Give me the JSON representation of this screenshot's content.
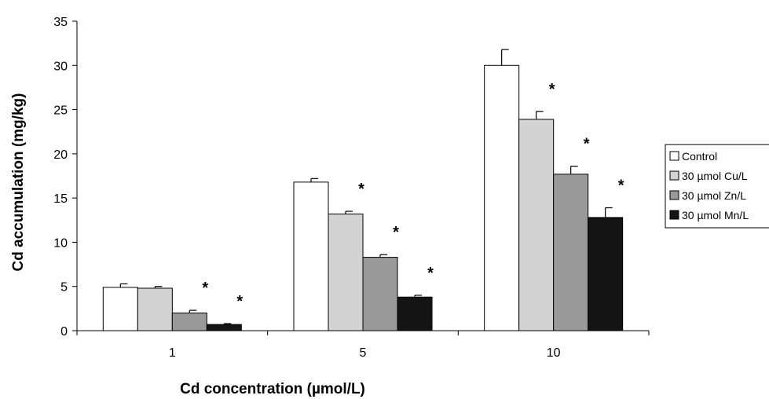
{
  "chart_data": {
    "type": "bar",
    "title": "",
    "xlabel": "Cd concentration (µmol/L)",
    "ylabel": "Cd accumulation (mg/kg)",
    "categories": [
      "1",
      "5",
      "10"
    ],
    "ylim": [
      0,
      35
    ],
    "yticks": [
      "0",
      "5",
      "10",
      "15",
      "20",
      "25",
      "30",
      "35"
    ],
    "grid": false,
    "legend_position": "right",
    "series": [
      {
        "name": "Control",
        "color": "#ffffff",
        "values": [
          4.9,
          16.8,
          30.0
        ],
        "errors": [
          0.4,
          0.4,
          1.8
        ],
        "significant": [
          false,
          false,
          false
        ]
      },
      {
        "name": "30 µmol Cu/L",
        "color": "#d3d3d3",
        "values": [
          4.8,
          13.2,
          23.9
        ],
        "errors": [
          0.2,
          0.3,
          0.9
        ],
        "significant": [
          false,
          true,
          true
        ]
      },
      {
        "name": "30 µmol Zn/L",
        "color": "#999999",
        "values": [
          2.0,
          8.3,
          17.7
        ],
        "errors": [
          0.3,
          0.3,
          0.9
        ],
        "significant": [
          true,
          true,
          true
        ]
      },
      {
        "name": "30 µmol Mn/L",
        "color": "#141414",
        "values": [
          0.7,
          3.8,
          12.8
        ],
        "errors": [
          0.1,
          0.2,
          1.1
        ],
        "significant": [
          true,
          true,
          true
        ]
      }
    ],
    "annotation_symbol": "*"
  }
}
